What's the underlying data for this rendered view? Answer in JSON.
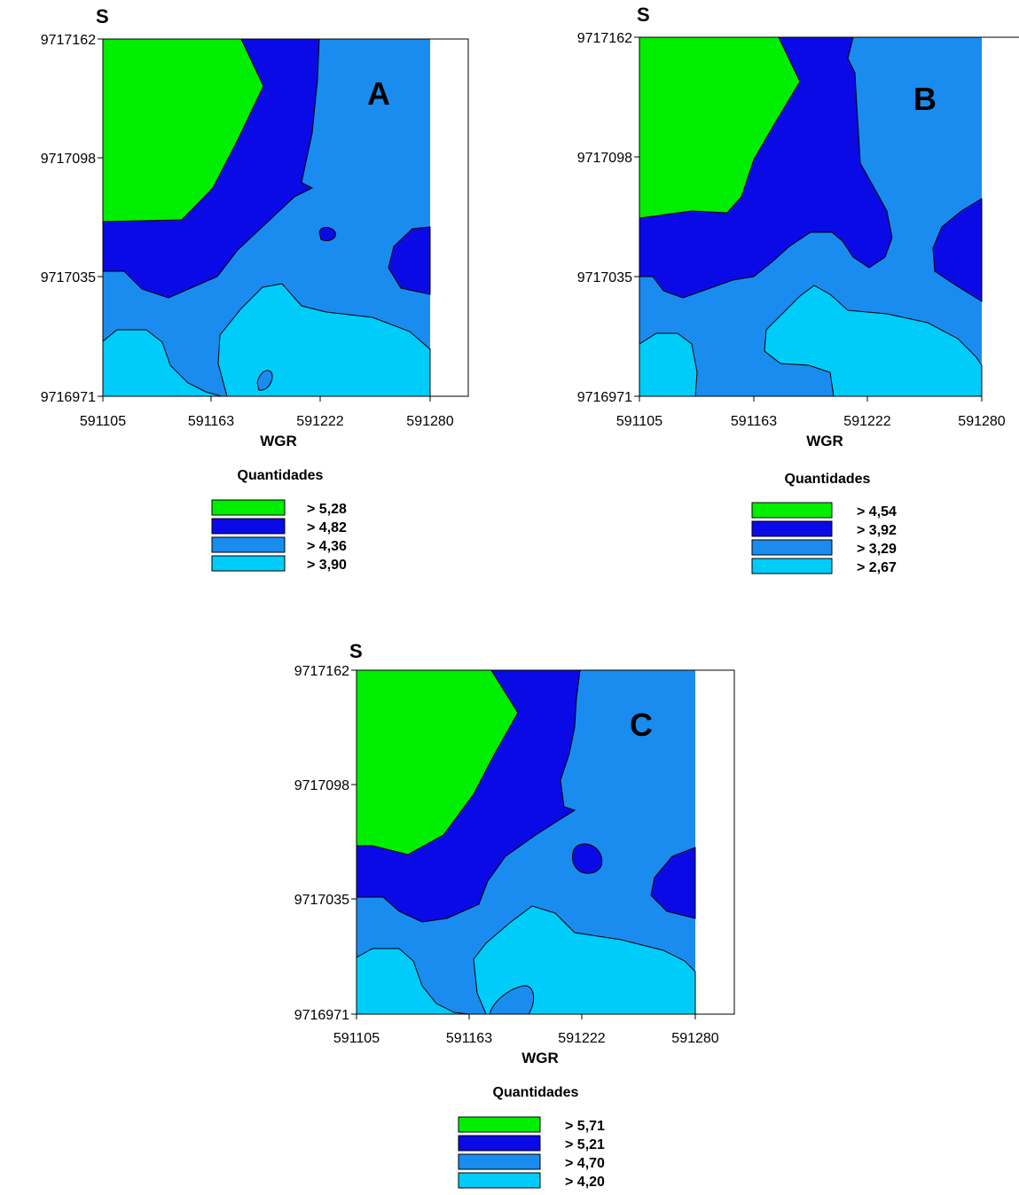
{
  "colors": {
    "green": "#00ee00",
    "dark_blue": "#0a0ae6",
    "mid_blue": "#1a8cf0",
    "light_blue": "#00ccfa",
    "outline": "#000000"
  },
  "panels": [
    {
      "id": "A",
      "letter": "A",
      "north_label": "S",
      "x_axis_title": "WGR",
      "x_ticks": [
        "591105",
        "591163",
        "591222",
        "591280"
      ],
      "y_ticks": [
        "9717162",
        "9717098",
        "9717035",
        "9716971"
      ],
      "legend_title": "Quantidades",
      "legend": [
        {
          "label": "> 5,28",
          "color": "#00ee00"
        },
        {
          "label": "> 4,82",
          "color": "#0a0ae6"
        },
        {
          "label": "> 4,36",
          "color": "#1a8cf0"
        },
        {
          "label": "> 3,90",
          "color": "#00ccfa"
        }
      ]
    },
    {
      "id": "B",
      "letter": "B",
      "north_label": "S",
      "x_axis_title": "WGR",
      "x_ticks": [
        "591105",
        "591163",
        "591222",
        "591280"
      ],
      "y_ticks": [
        "9717162",
        "9717098",
        "9717035",
        "9716971"
      ],
      "legend_title": "Quantidades",
      "legend": [
        {
          "label": "> 4,54",
          "color": "#00ee00"
        },
        {
          "label": "> 3,92",
          "color": "#0a0ae6"
        },
        {
          "label": "> 3,29",
          "color": "#1a8cf0"
        },
        {
          "label": "> 2,67",
          "color": "#00ccfa"
        }
      ]
    },
    {
      "id": "C",
      "letter": "C",
      "north_label": "S",
      "x_axis_title": "WGR",
      "x_ticks": [
        "591105",
        "591163",
        "591222",
        "591280"
      ],
      "y_ticks": [
        "9717162",
        "9717098",
        "9717035",
        "9716971"
      ],
      "legend_title": "Quantidades",
      "legend": [
        {
          "label": "> 5,71",
          "color": "#00ee00"
        },
        {
          "label": "> 5,21",
          "color": "#0a0ae6"
        },
        {
          "label": "> 4,70",
          "color": "#1a8cf0"
        },
        {
          "label": "> 4,20",
          "color": "#00ccfa"
        }
      ]
    }
  ]
}
